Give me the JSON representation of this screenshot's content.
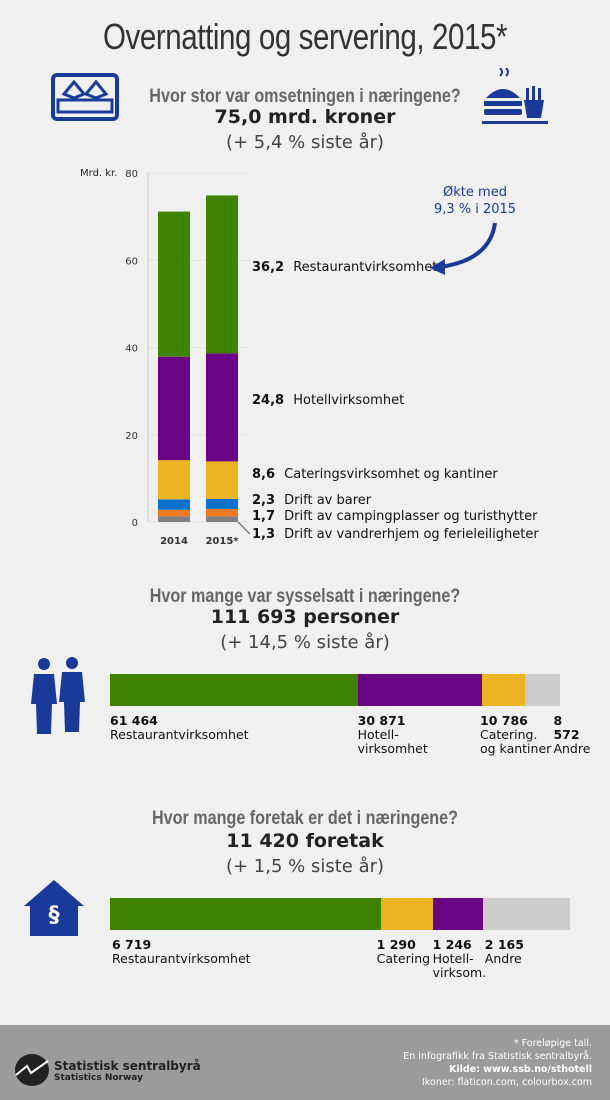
{
  "title": "Overnatting og servering, 2015*",
  "colors": {
    "restaurant": "#3f8200",
    "hotel": "#690584",
    "catering": "#ecb322",
    "barer": "#0a72cc",
    "camping": "#ec7a22",
    "vandrerhjem": "#808080",
    "andre": "#cccccc",
    "accent": "#1a3a9a"
  },
  "section1": {
    "question": "Hvor stor var omsetningen i næringene?",
    "value": "75,0 mrd. kroner",
    "change": "(+ 5,4 % siste år)",
    "annotation_line1": "Økte med",
    "annotation_line2": "9,3 % i 2015"
  },
  "chart_data": [
    {
      "type": "bar",
      "stacked": true,
      "ylabel": "Mrd. kr.",
      "ylim": [
        0,
        80
      ],
      "yticks": [
        "0",
        "20",
        "40",
        "60",
        "80"
      ],
      "categories": [
        "2014",
        "2015*"
      ],
      "grid": true,
      "series": [
        {
          "name": "Drift av vandrerhjem og ferieleiligheter",
          "values": [
            1.3,
            1.3
          ],
          "label": "1,3",
          "color": "#808080"
        },
        {
          "name": "Drift av campingplasser og turisthytter",
          "values": [
            1.5,
            1.7
          ],
          "label": "1,7",
          "color": "#ec7a22"
        },
        {
          "name": "Drift av barer",
          "values": [
            2.4,
            2.3
          ],
          "label": "2,3",
          "color": "#0a72cc"
        },
        {
          "name": "Cateringsvirksomhet og kantiner",
          "values": [
            9.0,
            8.6
          ],
          "label": "8,6",
          "color": "#ecb322"
        },
        {
          "name": "Hotellvirksomhet",
          "values": [
            23.7,
            24.8
          ],
          "label": "24,8",
          "color": "#690584"
        },
        {
          "name": "Restaurantvirksomhet",
          "values": [
            33.3,
            36.2
          ],
          "label": "36,2",
          "color": "#3f8200"
        }
      ]
    },
    {
      "type": "bar",
      "orientation": "horizontal",
      "stacked": true,
      "segments": [
        {
          "value": 61464,
          "label": "61 464",
          "name": [
            "Restaurantvirksomhet"
          ],
          "color": "#3f8200"
        },
        {
          "value": 30871,
          "label": "30 871",
          "name": [
            "Hotell-",
            "virksomhet"
          ],
          "color": "#690584"
        },
        {
          "value": 10786,
          "label": "10 786",
          "name": [
            "Catering.",
            "og kantiner"
          ],
          "color": "#ecb322"
        },
        {
          "value": 8572,
          "label": "8 572",
          "name": [
            "Andre"
          ],
          "color": "#cccccc"
        }
      ]
    },
    {
      "type": "bar",
      "orientation": "horizontal",
      "stacked": true,
      "segments": [
        {
          "value": 6719,
          "label": "6 719",
          "name": [
            "Restaurantvirksomhet"
          ],
          "color": "#3f8200"
        },
        {
          "value": 1290,
          "label": "1 290",
          "name": [
            "Catering"
          ],
          "color": "#ecb322"
        },
        {
          "value": 1246,
          "label": "1 246",
          "name": [
            "Hotell-",
            "virksom."
          ],
          "color": "#690584"
        },
        {
          "value": 2165,
          "label": "2 165",
          "name": [
            "Andre"
          ],
          "color": "#cccccc"
        }
      ]
    }
  ],
  "section2": {
    "question": "Hvor mange var sysselsatt i næringene?",
    "value": "111 693 personer",
    "change": "(+ 14,5 % siste år)"
  },
  "section3": {
    "question": "Hvor mange foretak er det i næringene?",
    "value": "11 420 foretak",
    "change": "(+ 1,5 % siste år)"
  },
  "footer": {
    "logo_name": "Statistisk sentralbyrå",
    "logo_sub": "Statistics Norway",
    "note": "* Foreløpige tall.",
    "line1": "En infografikk fra Statistisk sentralbyrå.",
    "source": "Kilde: www.ssb.no/sthotell",
    "icons": "Ikoner: flaticon.com, colourbox.com"
  }
}
